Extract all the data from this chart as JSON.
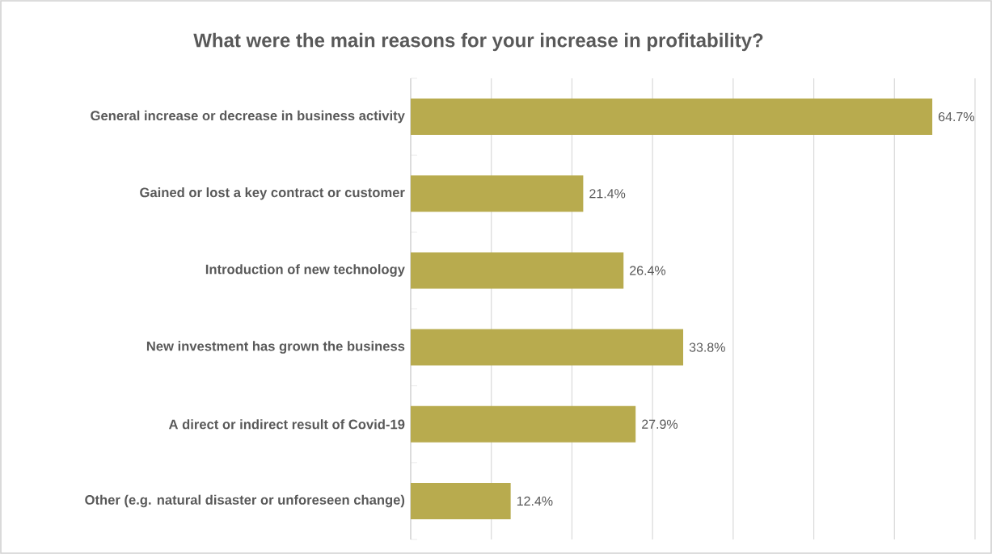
{
  "chart_data": {
    "type": "bar",
    "orientation": "horizontal",
    "title": "What were the main reasons for your increase in profitability?",
    "categories": [
      "General increase or decrease in business activity",
      "Gained or lost a key contract or customer",
      "Introduction of new technology",
      "New investment has grown the business",
      "A direct or indirect result of Covid-19",
      "Other (e.g. natural disaster or unforeseen change)"
    ],
    "values": [
      64.7,
      21.4,
      26.4,
      33.8,
      27.9,
      12.4
    ],
    "value_labels": [
      "64.7%",
      "21.4%",
      "26.4%",
      "33.8%",
      "27.9%",
      "12.4%"
    ],
    "color": "#b8ab4e",
    "xlim": [
      0,
      70
    ],
    "xticks": [
      {
        "value": 0,
        "label": null
      },
      {
        "value": 10,
        "label": null
      },
      {
        "value": 20,
        "label": null
      },
      {
        "value": 30,
        "label": null
      },
      {
        "value": 40,
        "label": null
      },
      {
        "value": 50,
        "label": null
      },
      {
        "value": 60,
        "label": null
      },
      {
        "value": 70,
        "label": null
      }
    ],
    "grid": "x",
    "tick_labels": "y"
  }
}
